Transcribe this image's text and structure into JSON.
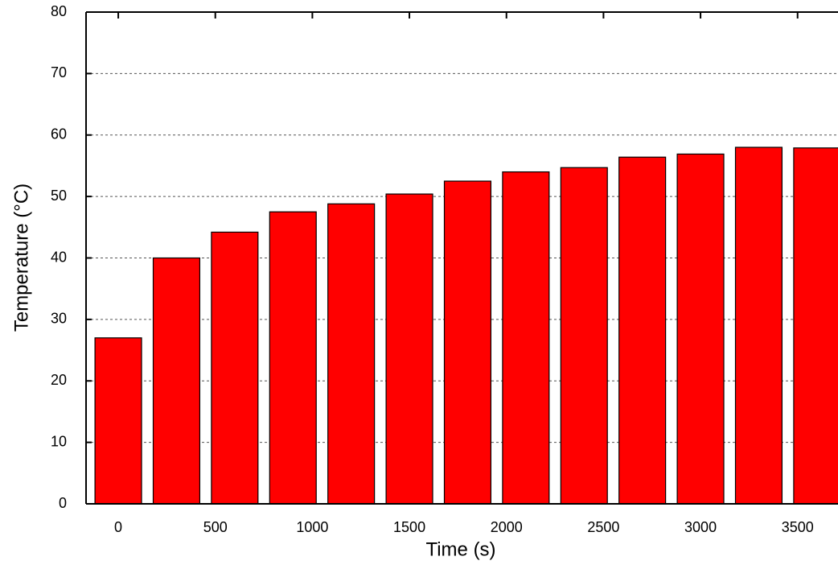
{
  "chart_data": {
    "type": "bar",
    "x_label": "Time (s)",
    "y_label": "Temperature (°C)",
    "x": [
      0,
      300,
      600,
      900,
      1200,
      1500,
      1800,
      2100,
      2400,
      2700,
      3000,
      3300,
      3600
    ],
    "values": [
      27,
      40,
      44.2,
      47.5,
      48.8,
      50.4,
      52.5,
      54,
      54.7,
      56.4,
      56.9,
      58,
      57.9
    ],
    "color": "#ff0000",
    "xlim": [
      -166,
      3700
    ],
    "xticks": [
      0,
      500,
      1000,
      1500,
      2000,
      2500,
      3000,
      3500
    ],
    "ylim": [
      0,
      80
    ],
    "yticks": [
      0,
      10,
      20,
      30,
      40,
      50,
      60,
      70,
      80
    ],
    "grid": true
  }
}
